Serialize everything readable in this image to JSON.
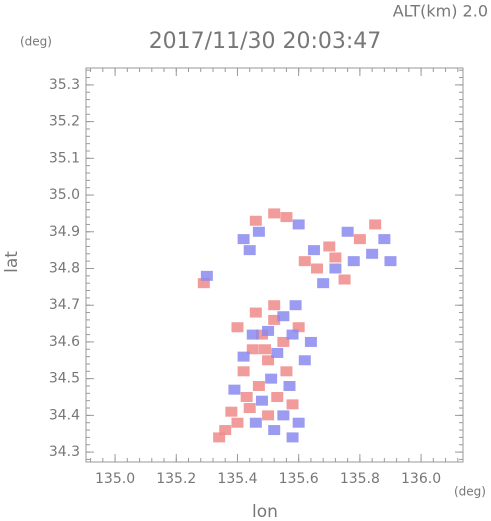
{
  "chart_data": {
    "type": "scatter",
    "title": "2017/11/30 20:03:47",
    "subtitle": "ALT(km) 2.0",
    "xlabel": "lon",
    "xunit": "(deg)",
    "ylabel": "lat",
    "yunit": "(deg)",
    "xlim": [
      134.905,
      136.137
    ],
    "ylim": [
      34.273,
      35.346
    ],
    "xticks": [
      {
        "value": 135.0,
        "label": "135.0"
      },
      135.2,
      135.4,
      135.6,
      135.8,
      {
        "value": 136.0,
        "label": "136.0"
      }
    ],
    "yticks": [
      34.3,
      34.4,
      34.5,
      34.6,
      34.7,
      34.8,
      34.9,
      {
        "value": 35.0,
        "label": "35.0"
      },
      35.1,
      35.2,
      35.3
    ],
    "grid": false,
    "series": [
      {
        "color": "#ee8a8a",
        "x": [
          135.52,
          135.48,
          135.55,
          135.45,
          135.5,
          135.42,
          135.47,
          135.53,
          135.44,
          135.4,
          135.36,
          135.34,
          135.5,
          135.58,
          135.52,
          135.46,
          135.6,
          135.49,
          135.56,
          135.43,
          135.66,
          135.72,
          135.7,
          135.8,
          135.85,
          135.62,
          135.75,
          135.46,
          135.52,
          135.56,
          135.29,
          135.4,
          135.38
        ],
        "y": [
          34.66,
          34.62,
          34.6,
          34.58,
          34.55,
          34.52,
          34.48,
          34.45,
          34.42,
          34.38,
          34.36,
          34.34,
          34.4,
          34.43,
          34.7,
          34.68,
          34.64,
          34.58,
          34.52,
          34.45,
          34.8,
          34.83,
          34.86,
          34.88,
          34.92,
          34.82,
          34.77,
          34.93,
          34.95,
          34.94,
          34.76,
          34.64,
          34.41
        ]
      },
      {
        "color": "#8a8aee",
        "x": [
          135.55,
          135.58,
          135.53,
          135.45,
          135.51,
          135.57,
          135.48,
          135.55,
          135.6,
          135.52,
          135.46,
          135.62,
          135.5,
          135.42,
          135.59,
          135.72,
          135.78,
          135.84,
          135.88,
          135.68,
          135.76,
          135.65,
          135.9,
          135.42,
          135.47,
          135.6,
          135.44,
          135.64,
          135.39,
          135.3,
          135.58
        ],
        "y": [
          34.67,
          34.62,
          34.57,
          34.62,
          34.5,
          34.48,
          34.44,
          34.4,
          34.38,
          34.36,
          34.38,
          34.55,
          34.63,
          34.56,
          34.7,
          34.8,
          34.82,
          34.84,
          34.88,
          34.76,
          34.9,
          34.85,
          34.82,
          34.88,
          34.9,
          34.92,
          34.85,
          34.6,
          34.47,
          34.78,
          34.34
        ]
      }
    ]
  }
}
